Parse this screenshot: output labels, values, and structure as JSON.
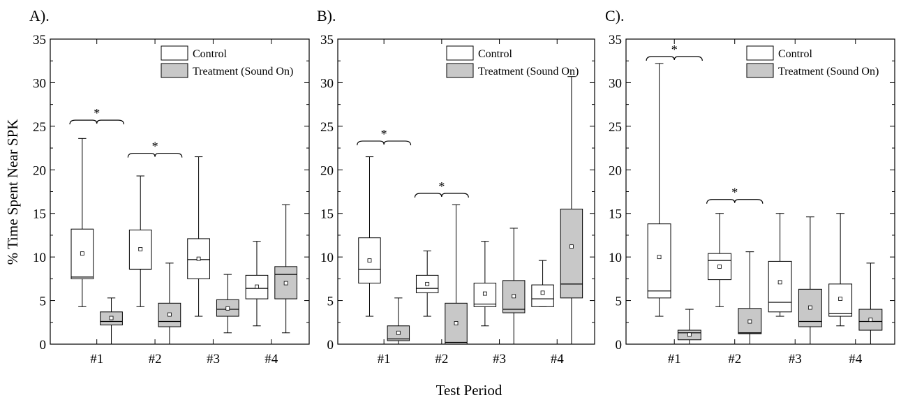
{
  "figure": {
    "xlabel": "Test Period",
    "ylabel": "% Time Spent Near SPK"
  },
  "legend": {
    "control_label": "Control",
    "treatment_label": "Treatment (Sound On)",
    "control_color": "#ffffff",
    "treatment_color": "#c8c8c8"
  },
  "chart_data": [
    {
      "type": "box",
      "panel_label": "A).",
      "categories": [
        "#1",
        "#2",
        "#3",
        "#4"
      ],
      "ylim": [
        0,
        35
      ],
      "yticks": [
        0,
        5,
        10,
        15,
        20,
        25,
        30,
        35
      ],
      "legend_position": "top-right",
      "series": [
        {
          "name": "Control",
          "boxes": [
            {
              "min": 4.3,
              "q1": 7.5,
              "median": 7.7,
              "q3": 13.2,
              "max": 23.6,
              "mean": 10.4
            },
            {
              "min": 4.3,
              "q1": 8.6,
              "median": 8.6,
              "q3": 13.1,
              "max": 19.3,
              "mean": 10.9
            },
            {
              "min": 3.2,
              "q1": 7.5,
              "median": 9.7,
              "q3": 12.1,
              "max": 21.5,
              "mean": 9.8
            },
            {
              "min": 2.1,
              "q1": 5.2,
              "median": 6.4,
              "q3": 7.9,
              "max": 11.8,
              "mean": 6.6
            }
          ]
        },
        {
          "name": "Treatment (Sound On)",
          "boxes": [
            {
              "min": 0.0,
              "q1": 2.2,
              "median": 2.6,
              "q3": 3.7,
              "max": 5.3,
              "mean": 3.0
            },
            {
              "min": 0.0,
              "q1": 2.0,
              "median": 2.6,
              "q3": 4.7,
              "max": 9.3,
              "mean": 3.4
            },
            {
              "min": 1.3,
              "q1": 3.2,
              "median": 4.0,
              "q3": 5.1,
              "max": 8.0,
              "mean": 4.1
            },
            {
              "min": 1.3,
              "q1": 5.2,
              "median": 8.0,
              "q3": 8.9,
              "max": 16.0,
              "mean": 7.0
            }
          ]
        }
      ],
      "significance": [
        {
          "category": "#1",
          "y": 25.7,
          "label": "*"
        },
        {
          "category": "#2",
          "y": 21.9,
          "label": "*"
        }
      ]
    },
    {
      "type": "box",
      "panel_label": "B).",
      "categories": [
        "#1",
        "#2",
        "#3",
        "#4"
      ],
      "ylim": [
        0,
        35
      ],
      "yticks": [
        0,
        5,
        10,
        15,
        20,
        25,
        30,
        35
      ],
      "legend_position": "top-right",
      "series": [
        {
          "name": "Control",
          "boxes": [
            {
              "min": 3.2,
              "q1": 7.0,
              "median": 8.6,
              "q3": 12.2,
              "max": 21.5,
              "mean": 9.6
            },
            {
              "min": 3.2,
              "q1": 5.9,
              "median": 6.4,
              "q3": 7.9,
              "max": 10.7,
              "mean": 6.9
            },
            {
              "min": 2.1,
              "q1": 4.3,
              "median": 4.6,
              "q3": 7.0,
              "max": 11.8,
              "mean": 5.8
            },
            {
              "min": 4.3,
              "q1": 4.3,
              "median": 5.2,
              "q3": 6.8,
              "max": 9.6,
              "mean": 5.9
            }
          ]
        },
        {
          "name": "Treatment (Sound On)",
          "boxes": [
            {
              "min": 0.0,
              "q1": 0.4,
              "median": 0.6,
              "q3": 2.1,
              "max": 5.3,
              "mean": 1.3
            },
            {
              "min": 0.0,
              "q1": 0.0,
              "median": 0.2,
              "q3": 4.7,
              "max": 16.0,
              "mean": 2.4
            },
            {
              "min": 0.0,
              "q1": 3.6,
              "median": 4.0,
              "q3": 7.3,
              "max": 13.3,
              "mean": 5.5
            },
            {
              "min": 0.0,
              "q1": 5.3,
              "median": 6.9,
              "q3": 15.5,
              "max": 30.7,
              "mean": 11.2
            }
          ]
        }
      ],
      "significance": [
        {
          "category": "#1",
          "y": 23.3,
          "label": "*"
        },
        {
          "category": "#2",
          "y": 17.3,
          "label": "*"
        }
      ]
    },
    {
      "type": "box",
      "panel_label": "C).",
      "categories": [
        "#1",
        "#2",
        "#3",
        "#4"
      ],
      "ylim": [
        0,
        35
      ],
      "yticks": [
        0,
        5,
        10,
        15,
        20,
        25,
        30,
        35
      ],
      "legend_position": "top-right",
      "series": [
        {
          "name": "Control",
          "boxes": [
            {
              "min": 3.2,
              "q1": 5.3,
              "median": 6.1,
              "q3": 13.8,
              "max": 32.2,
              "mean": 10.0
            },
            {
              "min": 4.3,
              "q1": 7.4,
              "median": 9.6,
              "q3": 10.4,
              "max": 15.0,
              "mean": 8.9
            },
            {
              "min": 3.2,
              "q1": 3.7,
              "median": 4.8,
              "q3": 9.5,
              "max": 15.0,
              "mean": 7.1
            },
            {
              "min": 2.1,
              "q1": 3.2,
              "median": 3.5,
              "q3": 6.9,
              "max": 15.0,
              "mean": 5.2
            }
          ]
        },
        {
          "name": "Treatment (Sound On)",
          "boxes": [
            {
              "min": 0.0,
              "q1": 0.5,
              "median": 1.3,
              "q3": 1.6,
              "max": 4.0,
              "mean": 1.1
            },
            {
              "min": 0.0,
              "q1": 1.2,
              "median": 1.3,
              "q3": 4.1,
              "max": 10.6,
              "mean": 2.6
            },
            {
              "min": 0.0,
              "q1": 2.0,
              "median": 2.6,
              "q3": 6.3,
              "max": 14.6,
              "mean": 4.2
            },
            {
              "min": 0.0,
              "q1": 1.6,
              "median": 2.6,
              "q3": 4.0,
              "max": 9.3,
              "mean": 2.8
            }
          ]
        }
      ],
      "significance": [
        {
          "category": "#1",
          "y": 33.0,
          "label": "*"
        },
        {
          "category": "#2",
          "y": 16.6,
          "label": "*"
        }
      ]
    }
  ]
}
